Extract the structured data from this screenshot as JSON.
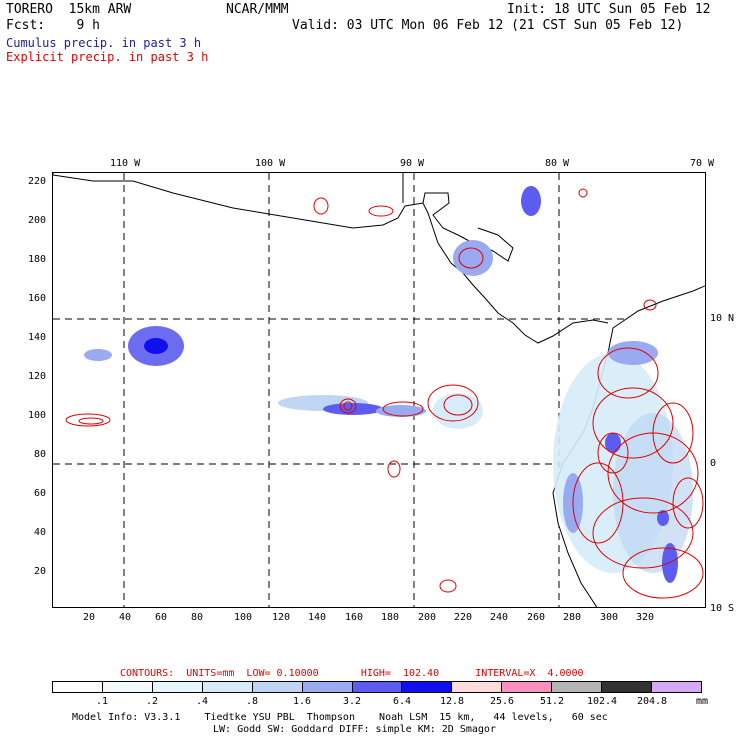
{
  "header": {
    "line1_left": "TORERO  15km ARW",
    "line1_mid": "NCAR/MMM",
    "line1_right": "Init: 18 UTC Sun 05 Feb 12",
    "line2_left": "Fcst:    9 h",
    "line2_right": "Valid: 03 UTC Mon 06 Feb 12 (21 CST Sun 05 Feb 12)",
    "legend_cumulus": "Cumulus precip. in past 3 h",
    "legend_explicit": "Explicit precip. in past 3 h"
  },
  "map": {
    "lon_labels": [
      "110 W",
      "100 W",
      "90 W",
      "80 W",
      "70 W"
    ],
    "lat_labels_right": [
      "10 N",
      "0",
      "10 S"
    ],
    "x_ticks": [
      "20",
      "40",
      "60",
      "80",
      "100",
      "120",
      "140",
      "160",
      "180",
      "200",
      "220",
      "240",
      "260",
      "280",
      "300",
      "320"
    ],
    "y_ticks": [
      "220",
      "200",
      "180",
      "160",
      "140",
      "120",
      "100",
      "80",
      "60",
      "40",
      "20"
    ],
    "colors": {
      "land_outline": "#000000",
      "explicit_contour": "#e00000",
      "grid": "#000000"
    }
  },
  "footer": {
    "contours_line": "CONTOURS:  UNITS=mm  LOW= 0.10000       HIGH=  102.40      INTERVAL=X  4.0000",
    "colorbar_labels": [
      ".1",
      ".2",
      ".4",
      ".8",
      "1.6",
      "3.2",
      "6.4",
      "12.8",
      "25.6",
      "51.2",
      "102.4",
      "204.8"
    ],
    "colorbar_unit": "mm",
    "colorbar_colors": [
      "#ffffff",
      "#f4fbff",
      "#e6f6ff",
      "#d6ecfa",
      "#bed6f4",
      "#9aaaf0",
      "#5c5cf0",
      "#1010ee",
      "#ffdcdc",
      "#f890c0",
      "#b4b4b4",
      "#323232",
      "#d7a8f8"
    ],
    "model_info_1": "Model Info: V3.3.1    Tiedtke YSU PBL  Thompson    Noah LSM  15 km,   44 levels,   60 sec",
    "model_info_2": "LW: Godd SW: Goddard DIFF: simple KM: 2D Smagor"
  }
}
